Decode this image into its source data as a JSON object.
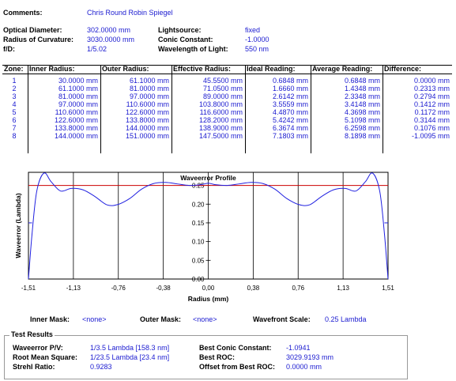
{
  "header": {
    "comments_label": "Comments:",
    "comments_value": "Chris Round Robin Spiegel",
    "optical_diameter_label": "Optical Diameter:",
    "optical_diameter_value": "302.0000 mm",
    "radius_curvature_label": "Radius of Curvature:",
    "radius_curvature_value": "3030.0000 mm",
    "fd_label": "f/D:",
    "fd_value": "1/5.02",
    "lightsource_label": "Lightsource:",
    "lightsource_value": "fixed",
    "conic_label": "Conic Constant:",
    "conic_value": "-1.0000",
    "wavelength_label": "Wavelength of Light:",
    "wavelength_value": "550 nm"
  },
  "zones": {
    "headers": [
      "Zone:",
      "Inner Radius:",
      "Outer Radius:",
      "Effective Radius:",
      "Ideal Reading:",
      "Average Reading:",
      "Difference:"
    ],
    "rows": [
      [
        "1",
        "30.0000 mm",
        "61.1000 mm",
        "45.5500 mm",
        "0.6848 mm",
        "0.6848 mm",
        "0.0000 mm"
      ],
      [
        "2",
        "61.1000 mm",
        "81.0000 mm",
        "71.0500 mm",
        "1.6660 mm",
        "1.4348 mm",
        "0.2313 mm"
      ],
      [
        "3",
        "81.0000 mm",
        "97.0000 mm",
        "89.0000 mm",
        "2.6142 mm",
        "2.3348 mm",
        "0.2794 mm"
      ],
      [
        "4",
        "97.0000 mm",
        "110.6000 mm",
        "103.8000 mm",
        "3.5559 mm",
        "3.4148 mm",
        "0.1412 mm"
      ],
      [
        "5",
        "110.6000 mm",
        "122.6000 mm",
        "116.6000 mm",
        "4.4870 mm",
        "4.3698 mm",
        "0.1172 mm"
      ],
      [
        "6",
        "122.6000 mm",
        "133.8000 mm",
        "128.2000 mm",
        "5.4242 mm",
        "5.1098 mm",
        "0.3144 mm"
      ],
      [
        "7",
        "133.8000 mm",
        "144.0000 mm",
        "138.9000 mm",
        "6.3674 mm",
        "6.2598 mm",
        "0.1076 mm"
      ],
      [
        "8",
        "144.0000 mm",
        "151.0000 mm",
        "147.5000 mm",
        "7.1803 mm",
        "8.1898 mm",
        "-1.0095 mm"
      ]
    ]
  },
  "chart_data": {
    "type": "line",
    "title": "Waveerror Profile",
    "xlabel": "Radius (mm)",
    "ylabel": "Waveerror (Lambda)",
    "x_ticks": [
      "-1,51",
      "-1,13",
      "-0,76",
      "-0,38",
      "0,00",
      "0,38",
      "0,76",
      "1,13",
      "1,51"
    ],
    "y_ticks": [
      "0.00",
      "0.05",
      "0.10",
      "0.15",
      "0.20",
      "0.25"
    ],
    "xlim": [
      -1.51,
      1.51
    ],
    "ylim": [
      0,
      0.285
    ],
    "reference_line": 0.25,
    "reference_color": "#cc0000",
    "line_color": "#2020e0",
    "series": [
      {
        "x": [
          -1.51,
          -1.48,
          -1.44,
          -1.38,
          -1.32,
          -1.24,
          -1.15,
          -1.05,
          -0.95,
          -0.85,
          -0.76,
          -0.66,
          -0.56,
          -0.46,
          -0.36,
          -0.26,
          -0.16,
          -0.06,
          0.0,
          0.06,
          0.16,
          0.26,
          0.36,
          0.46,
          0.56,
          0.66,
          0.76,
          0.85,
          0.95,
          1.05,
          1.15,
          1.24,
          1.32,
          1.38,
          1.44,
          1.48,
          1.51
        ],
        "y": [
          0.0,
          0.12,
          0.235,
          0.283,
          0.26,
          0.235,
          0.242,
          0.238,
          0.22,
          0.198,
          0.199,
          0.215,
          0.24,
          0.255,
          0.258,
          0.254,
          0.25,
          0.252,
          0.256,
          0.252,
          0.25,
          0.254,
          0.258,
          0.255,
          0.24,
          0.215,
          0.199,
          0.198,
          0.22,
          0.238,
          0.242,
          0.235,
          0.26,
          0.283,
          0.235,
          0.12,
          0.0
        ]
      }
    ]
  },
  "masks": {
    "inner_label": "Inner Mask:",
    "inner_value": "<none>",
    "outer_label": "Outer Mask:",
    "outer_value": "<none>",
    "scale_label": "Wavefront Scale:",
    "scale_value": "0.25 Lambda"
  },
  "results": {
    "title": "Test Results",
    "pv_label": "Waveerror P/V:",
    "pv_value": "1/3.5 Lambda [158.3 nm]",
    "rms_label": "Root Mean Square:",
    "rms_value": "1/23.5 Lambda [23.4 nm]",
    "strehl_label": "Strehl Ratio:",
    "strehl_value": "0.9283",
    "best_conic_label": "Best Conic Constant:",
    "best_conic_value": "-1.0941",
    "best_roc_label": "Best ROC:",
    "best_roc_value": "3029.9193 mm",
    "offset_label": "Offset from Best ROC:",
    "offset_value": "0.0000 mm"
  }
}
